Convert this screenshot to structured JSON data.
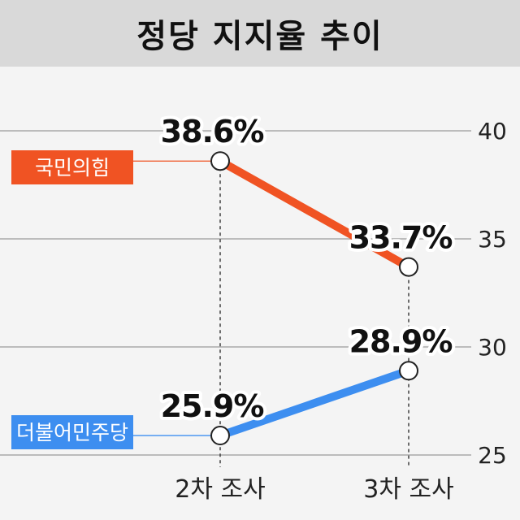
{
  "chart_data": {
    "type": "line",
    "title": "정당 지지율 추이",
    "categories": [
      "2차 조사",
      "3차 조사"
    ],
    "series": [
      {
        "name": "국민의힘",
        "values": [
          38.6,
          33.7
        ],
        "labels": [
          "38.6%",
          "33.7%"
        ],
        "color": "#f05323"
      },
      {
        "name": "더불어민주당",
        "values": [
          25.9,
          28.9
        ],
        "labels": [
          "25.9%",
          "28.9%"
        ],
        "color": "#3d8ef0"
      }
    ],
    "ylim": [
      25,
      40
    ],
    "yticks": [
      "25",
      "30",
      "35",
      "40"
    ],
    "grid": true,
    "legend": "left"
  }
}
